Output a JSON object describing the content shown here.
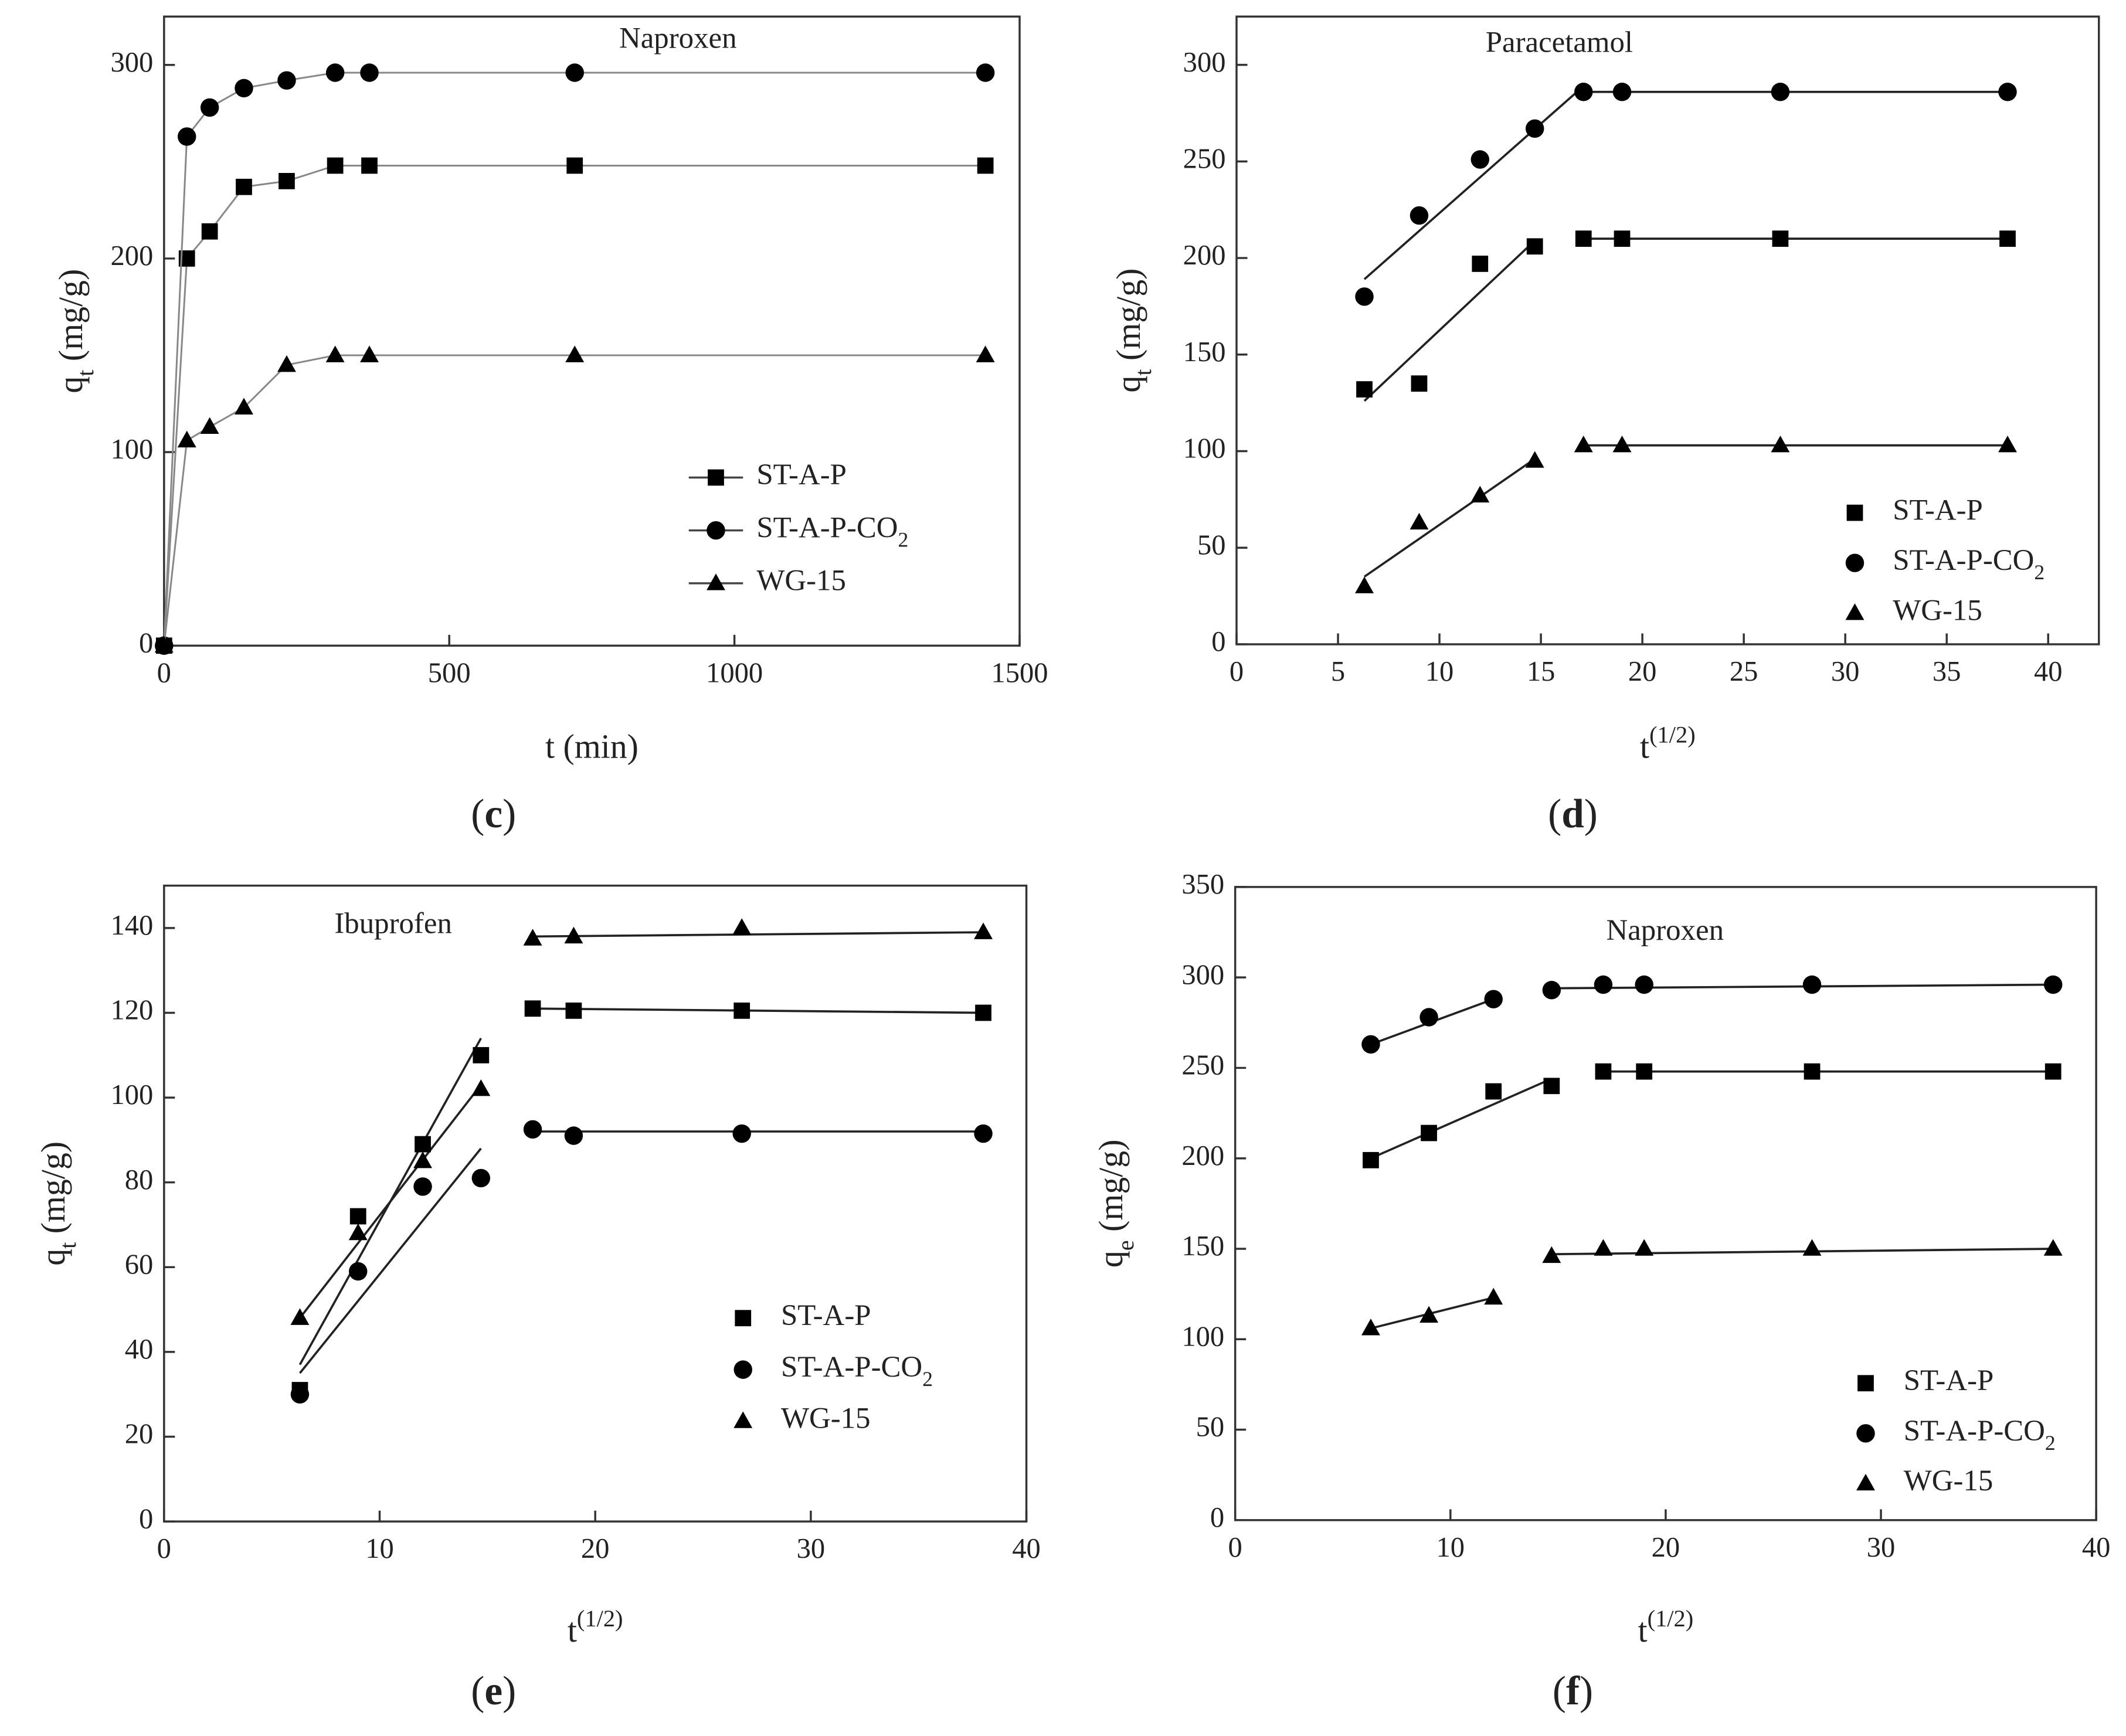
{
  "chart_data": [
    {
      "type": "line",
      "title": "Naproxen",
      "panel_label": [
        "(",
        "c",
        ")"
      ],
      "xlabel": "t (min)",
      "ylabel": [
        "q",
        "t",
        " (mg/g)"
      ],
      "x": [
        0,
        40,
        80,
        140,
        215,
        300,
        360,
        720,
        1440
      ],
      "xlim": [
        0,
        1500
      ],
      "xticks": [
        0,
        500,
        1000,
        1500
      ],
      "ylim": [
        0,
        325
      ],
      "yticks": [
        0,
        100,
        200,
        300
      ],
      "legend": "lower right",
      "legend_lines": true,
      "series": [
        {
          "name": "ST-A-P",
          "color": "#000000",
          "marker": "square",
          "values": [
            0,
            200,
            214,
            237,
            240,
            248,
            248,
            248,
            248
          ]
        },
        {
          "name": [
            "ST-A-P-CO",
            "2"
          ],
          "color": "#000000",
          "marker": "circle",
          "values": [
            0,
            263,
            278,
            288,
            292,
            296,
            296,
            296,
            296
          ]
        },
        {
          "name": "WG-15",
          "color": "#000000",
          "marker": "triangle",
          "values": [
            0,
            106,
            113,
            123,
            145,
            150,
            150,
            150,
            150
          ]
        }
      ]
    },
    {
      "type": "scatter",
      "title": "Paracetamol",
      "panel_label": [
        "(",
        "d",
        ")"
      ],
      "xlabel": [
        "t",
        "(1/2)"
      ],
      "ylabel": [
        "q",
        "t",
        " (mg/g)"
      ],
      "x": [
        6.3,
        9,
        12,
        14.7,
        17.1,
        19,
        26.8,
        38
      ],
      "xlim": [
        0,
        42.5
      ],
      "xticks": [
        0,
        5,
        10,
        15,
        20,
        25,
        30,
        35,
        40
      ],
      "ylim": [
        0,
        325
      ],
      "yticks": [
        0,
        50,
        100,
        150,
        200,
        250,
        300
      ],
      "legend": "lower right",
      "legend_lines": false,
      "series": [
        {
          "name": "ST-A-P",
          "color": "#000000",
          "marker": "square",
          "values": [
            132,
            135,
            197,
            206,
            210,
            210,
            210,
            210
          ]
        },
        {
          "name": [
            "ST-A-P-CO",
            "2"
          ],
          "color": "#000000",
          "marker": "circle",
          "values": [
            180,
            222,
            251,
            267,
            286,
            286,
            286,
            286
          ]
        },
        {
          "name": "WG-15",
          "color": "#000000",
          "marker": "triangle",
          "values": [
            30,
            63,
            77,
            95,
            103,
            103,
            103,
            103
          ]
        }
      ],
      "fit_lines": [
        {
          "x": [
            6.3,
            14.7
          ],
          "y": [
            126,
            209
          ]
        },
        {
          "x": [
            17.1,
            38
          ],
          "y": [
            210,
            210
          ]
        },
        {
          "x": [
            6.3,
            17.1
          ],
          "y": [
            189,
            289
          ]
        },
        {
          "x": [
            17.1,
            38
          ],
          "y": [
            286,
            286
          ]
        },
        {
          "x": [
            6.3,
            14.7
          ],
          "y": [
            35,
            96
          ]
        },
        {
          "x": [
            17.1,
            38
          ],
          "y": [
            103,
            103
          ]
        }
      ]
    },
    {
      "type": "scatter",
      "title": "Ibuprofen",
      "panel_label": [
        "(",
        "e",
        ")"
      ],
      "xlabel": [
        "t",
        "(1/2)"
      ],
      "ylabel": [
        "q",
        "t",
        " (mg/g)"
      ],
      "x": [
        6.3,
        9,
        12,
        14.7,
        17.1,
        19,
        26.8,
        38
      ],
      "xlim": [
        0,
        40
      ],
      "xticks": [
        0,
        10,
        20,
        30,
        40
      ],
      "ylim": [
        0,
        150
      ],
      "yticks": [
        0,
        20,
        40,
        60,
        80,
        100,
        120,
        140
      ],
      "legend": "lower right",
      "legend_lines": false,
      "series": [
        {
          "name": "ST-A-P",
          "color": "#000000",
          "marker": "square",
          "values": [
            31,
            72,
            89,
            110,
            121,
            120.5,
            120.5,
            120
          ]
        },
        {
          "name": [
            "ST-A-P-CO",
            "2"
          ],
          "color": "#000000",
          "marker": "circle",
          "values": [
            30,
            59,
            79,
            81,
            92.5,
            91,
            91.5,
            91.5
          ]
        },
        {
          "name": "WG-15",
          "color": "#000000",
          "marker": "triangle",
          "values": [
            48,
            68,
            85,
            102,
            137.5,
            138,
            140,
            139
          ]
        }
      ],
      "fit_lines": [
        {
          "x": [
            6.3,
            14.7
          ],
          "y": [
            37,
            114
          ]
        },
        {
          "x": [
            6.3,
            14.7
          ],
          "y": [
            35,
            88
          ]
        },
        {
          "x": [
            6.3,
            14.7
          ],
          "y": [
            48,
            103
          ]
        },
        {
          "x": [
            17.1,
            38
          ],
          "y": [
            121,
            120
          ]
        },
        {
          "x": [
            17.1,
            38
          ],
          "y": [
            92,
            92
          ]
        },
        {
          "x": [
            17.1,
            38
          ],
          "y": [
            138,
            139
          ]
        }
      ]
    },
    {
      "type": "scatter",
      "title": "Naproxen",
      "panel_label": [
        "(",
        "f",
        ")"
      ],
      "xlabel": [
        "t",
        "(1/2)"
      ],
      "ylabel": [
        "q",
        "e",
        " (mg/g)"
      ],
      "x": [
        6.3,
        9,
        12,
        14.7,
        17.1,
        19,
        26.8,
        38
      ],
      "xlim": [
        0,
        40
      ],
      "xticks": [
        0,
        10,
        20,
        30,
        40
      ],
      "ylim": [
        0,
        350
      ],
      "yticks": [
        0,
        50,
        100,
        150,
        200,
        250,
        300,
        350
      ],
      "legend": "lower right",
      "legend_lines": false,
      "series": [
        {
          "name": "ST-A-P",
          "color": "#000000",
          "marker": "square",
          "values": [
            199,
            214,
            237,
            240,
            248,
            248,
            248,
            248
          ]
        },
        {
          "name": [
            "ST-A-P-CO",
            "2"
          ],
          "color": "#000000",
          "marker": "circle",
          "values": [
            263,
            278,
            288,
            293,
            296,
            296,
            296,
            296
          ]
        },
        {
          "name": "WG-15",
          "color": "#000000",
          "marker": "triangle",
          "values": [
            106,
            113,
            123,
            146,
            150,
            150,
            150,
            150
          ]
        }
      ],
      "fit_lines": [
        {
          "x": [
            6.3,
            14.7
          ],
          "y": [
            200,
            244
          ]
        },
        {
          "x": [
            17.1,
            38
          ],
          "y": [
            248,
            248
          ]
        },
        {
          "x": [
            6.3,
            12
          ],
          "y": [
            263,
            288
          ]
        },
        {
          "x": [
            14.7,
            38
          ],
          "y": [
            294,
            296
          ]
        },
        {
          "x": [
            6.3,
            12
          ],
          "y": [
            106,
            123
          ]
        },
        {
          "x": [
            14.7,
            38
          ],
          "y": [
            147,
            150
          ]
        }
      ]
    }
  ]
}
